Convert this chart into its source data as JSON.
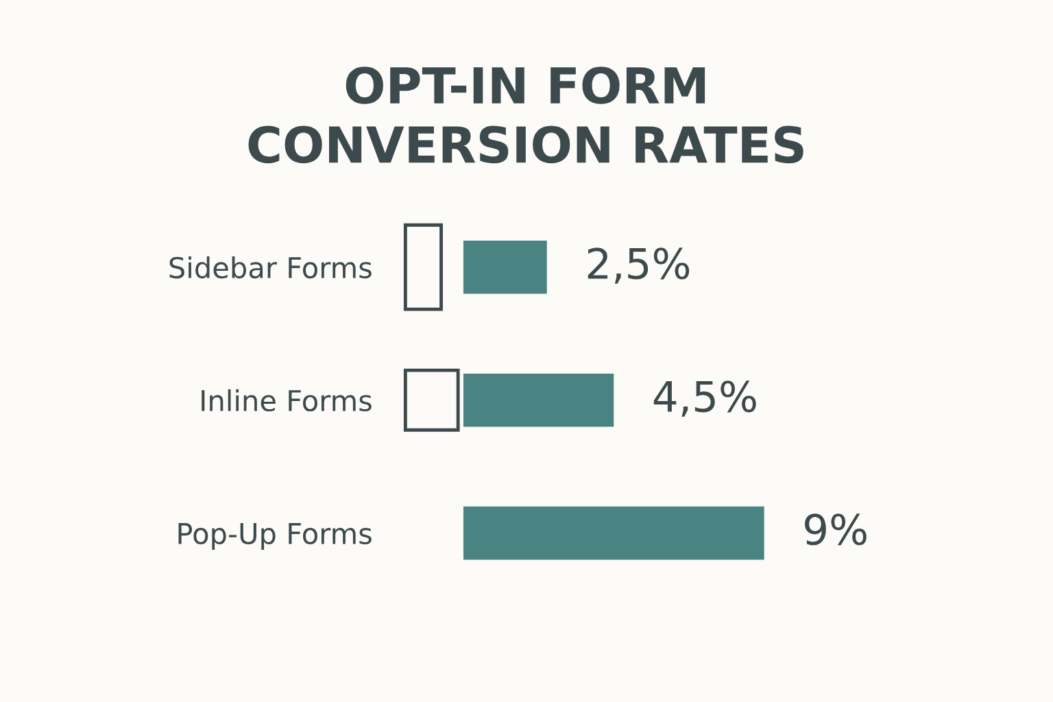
{
  "chart_data": {
    "type": "bar",
    "orientation": "horizontal",
    "title": "OPT-IN FORM\nCONVERSION RATES",
    "categories": [
      "Sidebar Forms",
      "Inline Forms",
      "Pop-Up Forms"
    ],
    "values": [
      2.5,
      4.5,
      9
    ],
    "color": "#4a8482",
    "value_labels": [
      "2,5%",
      "4,5%",
      "9%"
    ],
    "tick_labels": "y",
    "grid": false,
    "legend": false
  }
}
